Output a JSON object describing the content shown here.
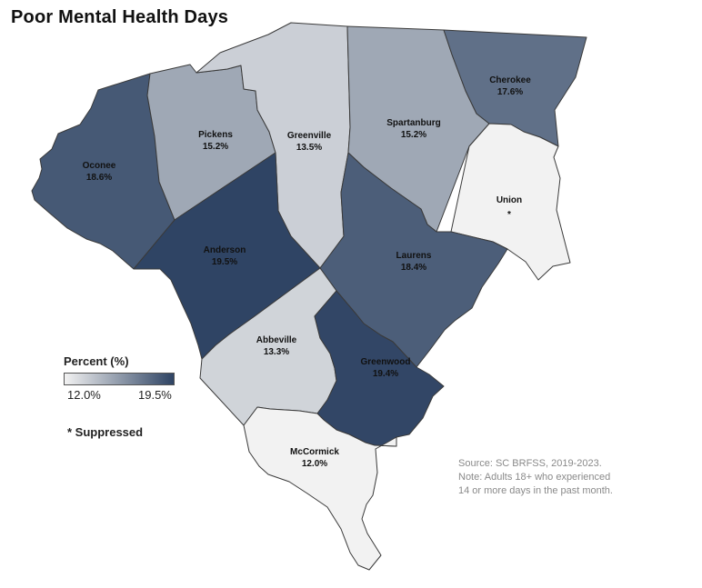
{
  "title": "Poor Mental Health Days",
  "legend": {
    "title": "Percent (%)",
    "min_label": "12.0%",
    "max_label": "19.5%",
    "min_value": 12.0,
    "max_value": 19.5,
    "color_low": "#f2f2f2",
    "color_high": "#2f4464"
  },
  "suppressed_note": "* Suppressed",
  "source": {
    "line1": "Source: SC BRFSS, 2019-2023.",
    "line2": "Note: Adults 18+ who experienced",
    "line3": "14 or more days in the past month."
  },
  "counties": [
    {
      "id": "oconee",
      "name": "Oconee",
      "value_label": "18.6%",
      "value": 18.6
    },
    {
      "id": "pickens",
      "name": "Pickens",
      "value_label": "15.2%",
      "value": 15.2
    },
    {
      "id": "greenville",
      "name": "Greenville",
      "value_label": "13.5%",
      "value": 13.5
    },
    {
      "id": "spartanburg",
      "name": "Spartanburg",
      "value_label": "15.2%",
      "value": 15.2
    },
    {
      "id": "cherokee",
      "name": "Cherokee",
      "value_label": "17.6%",
      "value": 17.6
    },
    {
      "id": "union",
      "name": "Union",
      "value_label": "*",
      "value": null
    },
    {
      "id": "anderson",
      "name": "Anderson",
      "value_label": "19.5%",
      "value": 19.5
    },
    {
      "id": "laurens",
      "name": "Laurens",
      "value_label": "18.4%",
      "value": 18.4
    },
    {
      "id": "abbeville",
      "name": "Abbeville",
      "value_label": "13.3%",
      "value": 13.3
    },
    {
      "id": "greenwood",
      "name": "Greenwood",
      "value_label": "19.4%",
      "value": 19.4
    },
    {
      "id": "mccormick",
      "name": "McCormick",
      "value_label": "12.0%",
      "value": 12.0
    }
  ]
}
